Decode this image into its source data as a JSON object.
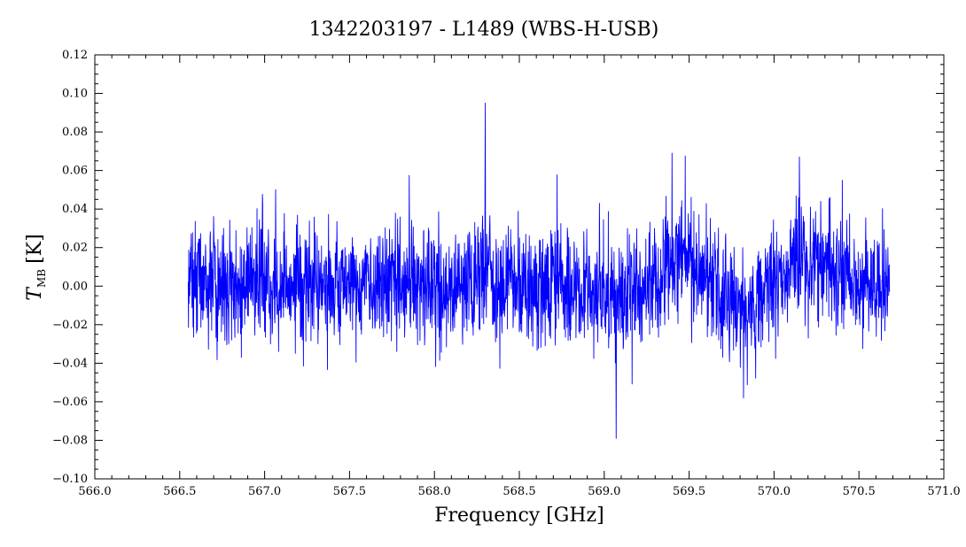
{
  "chart_data": {
    "type": "line",
    "title": "1342203197 - L1489 (WBS-H-USB)",
    "xlabel": "Frequency [GHz]",
    "ylabel_main": "T",
    "ylabel_sub": "MB",
    "ylabel_unit": "[K]",
    "xlim": [
      566.0,
      571.0
    ],
    "ylim": [
      -0.1,
      0.12
    ],
    "x_ticks": [
      "566.0",
      "566.5",
      "567.0",
      "567.5",
      "568.0",
      "568.5",
      "569.0",
      "569.5",
      "570.0",
      "570.5",
      "571.0"
    ],
    "y_ticks": [
      "−0.10",
      "−0.08",
      "−0.06",
      "−0.04",
      "−0.02",
      "0.00",
      "0.02",
      "0.04",
      "0.06",
      "0.08",
      "0.10",
      "0.12"
    ],
    "grid": false,
    "series": [
      {
        "color": "#0000ff",
        "x_range": [
          566.55,
          570.68
        ],
        "noise_rms": 0.015,
        "features": [
          {
            "x": 568.3,
            "peak": 0.095
          },
          {
            "x": 569.4,
            "peak": 0.069
          },
          {
            "x": 570.15,
            "peak": 0.067
          },
          {
            "x": 569.07,
            "min": -0.079
          },
          {
            "x": 569.82,
            "min": -0.058
          }
        ]
      }
    ]
  }
}
